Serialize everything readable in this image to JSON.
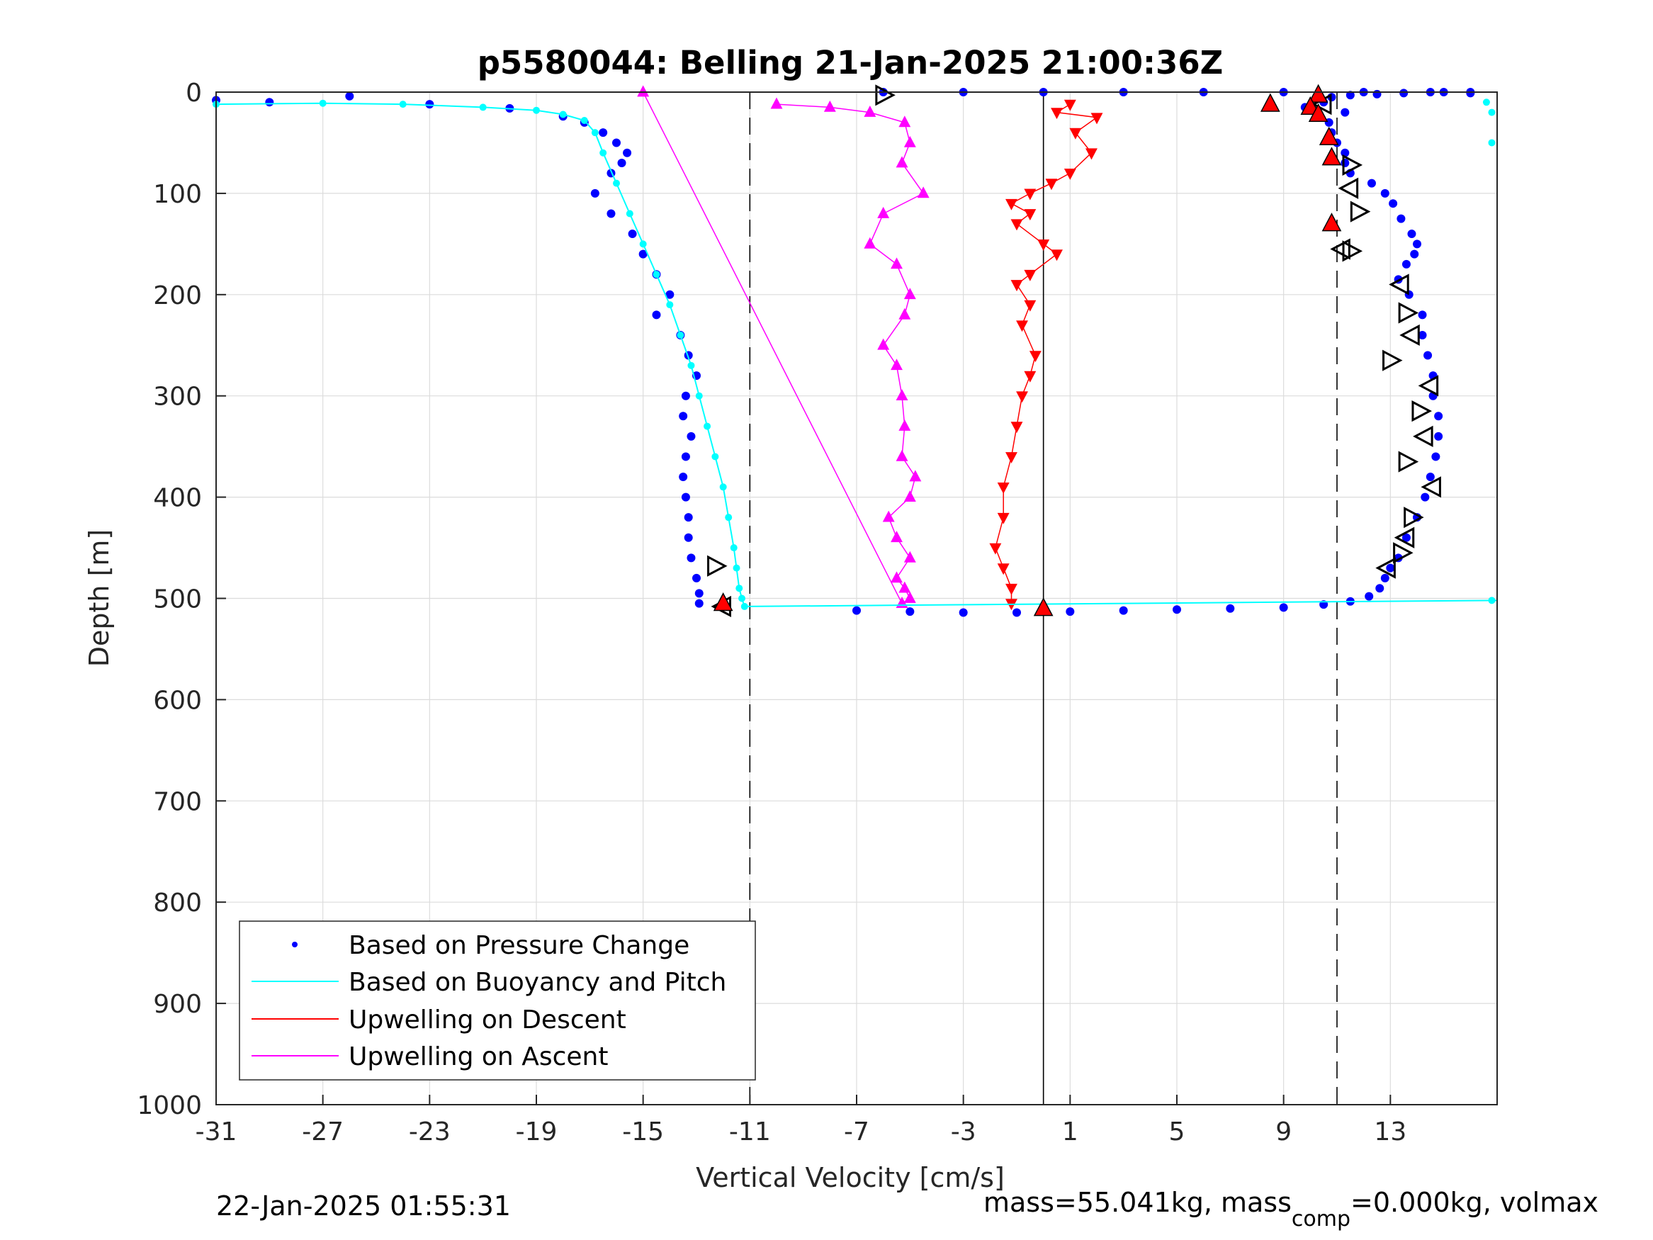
{
  "chart_data": {
    "type": "scatter",
    "title": "p5580044: Belling 21-Jan-2025 21:00:36Z",
    "xlabel": "Vertical Velocity [cm/s]",
    "ylabel": "Depth [m]",
    "xlim": [
      -31,
      17
    ],
    "ylim": [
      0,
      1000
    ],
    "y_reversed": true,
    "grid": true,
    "x_ticks": [
      "-31",
      "-27",
      "-23",
      "-19",
      "-15",
      "-11",
      "-7",
      "-3",
      "1",
      "5",
      "9",
      "13"
    ],
    "y_ticks": [
      "0",
      "100",
      "200",
      "300",
      "400",
      "500",
      "600",
      "700",
      "800",
      "900",
      "1000"
    ],
    "legend_position": "bottom-left",
    "reference_lines": [
      {
        "x": -11,
        "style": "dashed"
      },
      {
        "x": 0,
        "style": "solid"
      },
      {
        "x": 11,
        "style": "dashed"
      }
    ],
    "series": [
      {
        "name": "Based on Pressure Change",
        "marker": "dot",
        "color": "#0000ff",
        "descent": {
          "x": [
            -31,
            -29,
            -26,
            -23,
            -20,
            -18,
            -17.2,
            -16.5,
            -16,
            -15.6,
            -15.8,
            -16.2,
            -16.8,
            -16.2,
            -15.4,
            -15,
            -14.5,
            -14,
            -14.5,
            -13.6,
            -13.3,
            -13,
            -13.4,
            -13.5,
            -13.2,
            -13.4,
            -13.5,
            -13.4,
            -13.3,
            -13.3,
            -13.2,
            -13,
            -12.9,
            -12.9
          ],
          "y": [
            8,
            10,
            4,
            12,
            16,
            24,
            30,
            40,
            50,
            60,
            70,
            80,
            100,
            120,
            140,
            160,
            180,
            200,
            220,
            240,
            260,
            280,
            300,
            320,
            340,
            360,
            380,
            400,
            420,
            440,
            460,
            480,
            495,
            505
          ]
        },
        "ascent": {
          "x": [
            -7,
            -5,
            -3,
            -1,
            1,
            3,
            5,
            7,
            9,
            10.5,
            11.5,
            12.2,
            12.6,
            12.8,
            13,
            13.3,
            13.6,
            14,
            14.3,
            14.5,
            14.7,
            14.8,
            14.8,
            14.6,
            14.6,
            14.4,
            14.2,
            14.2,
            13.7,
            13.3,
            13.6,
            13.9,
            14,
            13.8,
            13.4,
            13.1,
            12.8,
            12.3,
            11.5,
            11.3,
            11.3,
            11,
            10.8,
            10.7,
            11.3,
            10.5,
            10.8,
            9.8,
            11.5,
            12.5,
            13.5,
            15,
            16
          ],
          "y": [
            512,
            513,
            514,
            514,
            513,
            512,
            511,
            510,
            509,
            506,
            503,
            498,
            490,
            480,
            470,
            460,
            440,
            420,
            400,
            380,
            360,
            340,
            320,
            300,
            280,
            260,
            240,
            220,
            200,
            185,
            170,
            160,
            150,
            140,
            125,
            110,
            100,
            90,
            80,
            70,
            60,
            50,
            40,
            30,
            20,
            10,
            5,
            15,
            3,
            2,
            1,
            0,
            1
          ]
        },
        "surface_points": {
          "x": [
            -6,
            -3,
            0,
            3,
            6,
            9,
            12,
            14.5,
            16
          ],
          "y": [
            0,
            0,
            0,
            0,
            0,
            0,
            0,
            0,
            0
          ]
        }
      },
      {
        "name": "Based on Buoyancy and Pitch",
        "marker": "line",
        "color": "#00ffff",
        "descent": {
          "x": [
            -31,
            -27,
            -24,
            -21,
            -19,
            -18,
            -17.2,
            -16.8,
            -16.5,
            -16,
            -15.5,
            -15,
            -14.5,
            -14,
            -13.6,
            -13.2,
            -12.9,
            -12.6,
            -12.3,
            -12,
            -11.8,
            -11.6,
            -11.5,
            -11.4,
            -11.3,
            -11.2
          ],
          "y": [
            12,
            11,
            12,
            15,
            18,
            22,
            28,
            40,
            60,
            90,
            120,
            150,
            180,
            210,
            240,
            270,
            300,
            330,
            360,
            390,
            420,
            450,
            470,
            490,
            500,
            508
          ]
        },
        "ascent": {
          "x": [
            16.8,
            16.6,
            16.8,
            16.8
          ],
          "y": [
            502,
            10,
            20,
            50
          ]
        }
      },
      {
        "name": "Upwelling on Descent",
        "marker": "triangle-down",
        "color": "#ff0000",
        "x": [
          1,
          0.5,
          2,
          1.2,
          1.8,
          1.0,
          0.3,
          -0.5,
          -1.2,
          -0.5,
          -1.0,
          0,
          0.5,
          -0.5,
          -1.0,
          -0.5,
          -0.8,
          -0.3,
          -0.5,
          -0.8,
          -1.0,
          -1.2,
          -1.5,
          -1.5,
          -1.8,
          -1.5,
          -1.2,
          -1.2
        ],
        "y": [
          12,
          20,
          25,
          40,
          60,
          80,
          90,
          100,
          110,
          120,
          130,
          150,
          160,
          180,
          190,
          210,
          230,
          260,
          280,
          300,
          330,
          360,
          390,
          420,
          450,
          470,
          490,
          505
        ]
      },
      {
        "name": "Upwelling on Ascent",
        "marker": "triangle-up",
        "color": "#ff00ff",
        "x": [
          -10,
          -8,
          -6.5,
          -5.2,
          -5,
          -5.3,
          -4.5,
          -6,
          -6.5,
          -5.5,
          -5,
          -5.2,
          -6,
          -5.5,
          -5.3,
          -5.2,
          -5.3,
          -4.8,
          -5.0,
          -5.8,
          -5.5,
          -5.0,
          -5.5,
          -5.2,
          -5.0,
          -5.3,
          -15
        ],
        "y": [
          12,
          15,
          20,
          30,
          50,
          70,
          100,
          120,
          150,
          170,
          200,
          220,
          250,
          270,
          300,
          330,
          360,
          380,
          400,
          420,
          440,
          460,
          480,
          490,
          500,
          505,
          0
        ]
      }
    ],
    "turning_points": {
      "open_triangles": {
        "x": [
          -6,
          10.5,
          11.5,
          11.5,
          11.8,
          11.2,
          11.5,
          13.4,
          13.6,
          13.8,
          13.0,
          14.5,
          14.1,
          14.3,
          13.6,
          14.6,
          13.8,
          13.6,
          13.4,
          12.9,
          -12.3,
          -12
        ],
        "y": [
          3,
          12,
          72,
          95,
          118,
          155,
          157,
          190,
          218,
          240,
          265,
          290,
          315,
          340,
          365,
          390,
          420,
          440,
          455,
          470,
          468,
          508
        ]
      },
      "red_triangles": {
        "x": [
          8.5,
          10.3,
          10.0,
          10.3,
          10.7,
          10.8,
          10.8,
          0,
          -12.0
        ],
        "y": [
          12,
          3,
          15,
          22,
          45,
          65,
          130,
          510,
          505
        ]
      }
    }
  },
  "footer": {
    "timestamp": "22-Jan-2025 01:55:31",
    "mass_prefix": "mass=55.041kg, mass",
    "mass_sub": "comp",
    "mass_suffix": "=0.000kg, volmax"
  },
  "colors": {
    "pressure": "#0000ff",
    "buoyancy": "#00ffff",
    "descent": "#ff0000",
    "ascent": "#ff00ff",
    "grid": "#dcdcdc"
  }
}
